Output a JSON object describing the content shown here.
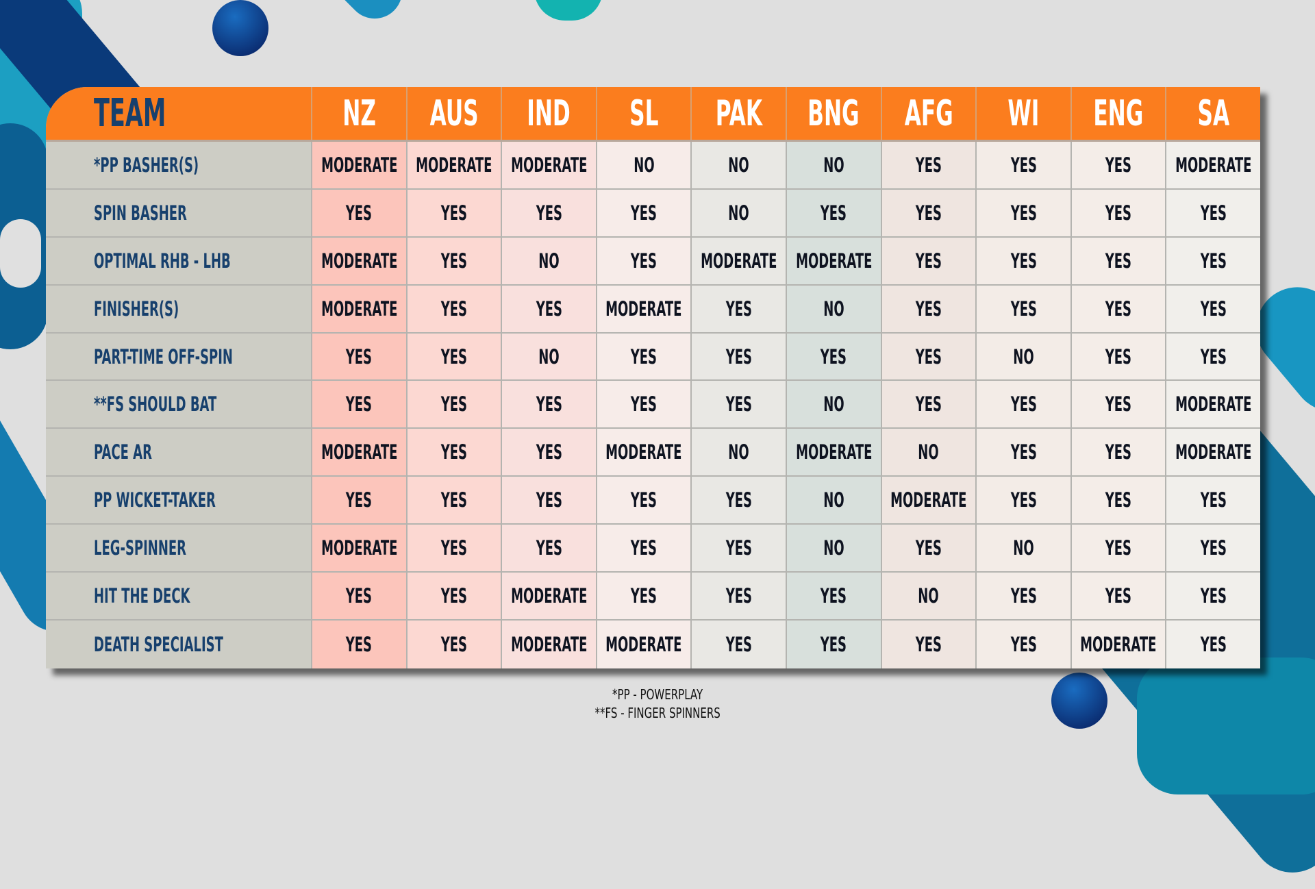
{
  "header": {
    "label": "TEAM",
    "teams": [
      "NZ",
      "AUS",
      "IND",
      "SL",
      "PAK",
      "BNG",
      "AFG",
      "WI",
      "ENG",
      "SA"
    ]
  },
  "column_colors": [
    "#fcc5bb",
    "#fcd8d2",
    "#f9e0dd",
    "#f7ece9",
    "#e9e8e4",
    "#d8e0dc",
    "#efe5e0",
    "#f3ece7",
    "#f4ede8",
    "#f1efeb"
  ],
  "accent": "#fb7d1e",
  "rows": [
    {
      "label": "*PP BASHER(S)",
      "values": [
        "MODERATE",
        "MODERATE",
        "MODERATE",
        "NO",
        "NO",
        "NO",
        "YES",
        "YES",
        "YES",
        "MODERATE"
      ]
    },
    {
      "label": "SPIN BASHER",
      "values": [
        "YES",
        "YES",
        "YES",
        "YES",
        "NO",
        "YES",
        "YES",
        "YES",
        "YES",
        "YES"
      ]
    },
    {
      "label": "OPTIMAL RHB - LHB",
      "values": [
        "MODERATE",
        "YES",
        "NO",
        "YES",
        "MODERATE",
        "MODERATE",
        "YES",
        "YES",
        "YES",
        "YES"
      ]
    },
    {
      "label": "FINISHER(S)",
      "values": [
        "MODERATE",
        "YES",
        "YES",
        "MODERATE",
        "YES",
        "NO",
        "YES",
        "YES",
        "YES",
        "YES"
      ]
    },
    {
      "label": "PART-TIME OFF-SPIN",
      "values": [
        "YES",
        "YES",
        "NO",
        "YES",
        "YES",
        "YES",
        "YES",
        "NO",
        "YES",
        "YES"
      ]
    },
    {
      "label": "**FS SHOULD BAT",
      "values": [
        "YES",
        "YES",
        "YES",
        "YES",
        "YES",
        "NO",
        "YES",
        "YES",
        "YES",
        "MODERATE"
      ]
    },
    {
      "label": "PACE AR",
      "values": [
        "MODERATE",
        "YES",
        "YES",
        "MODERATE",
        "NO",
        "MODERATE",
        "NO",
        "YES",
        "YES",
        "MODERATE"
      ]
    },
    {
      "label": "PP WICKET-TAKER",
      "values": [
        "YES",
        "YES",
        "YES",
        "YES",
        "YES",
        "NO",
        "MODERATE",
        "YES",
        "YES",
        "YES"
      ]
    },
    {
      "label": "LEG-SPINNER",
      "values": [
        "MODERATE",
        "YES",
        "YES",
        "YES",
        "YES",
        "NO",
        "YES",
        "NO",
        "YES",
        "YES"
      ]
    },
    {
      "label": "HIT THE DECK",
      "values": [
        "YES",
        "YES",
        "MODERATE",
        "YES",
        "YES",
        "YES",
        "NO",
        "YES",
        "YES",
        "YES"
      ]
    },
    {
      "label": "DEATH SPECIALIST",
      "values": [
        "YES",
        "YES",
        "MODERATE",
        "MODERATE",
        "YES",
        "YES",
        "YES",
        "YES",
        "MODERATE",
        "YES"
      ]
    }
  ],
  "footnotes": [
    "*PP - POWERPLAY",
    "**FS - FINGER SPINNERS"
  ]
}
